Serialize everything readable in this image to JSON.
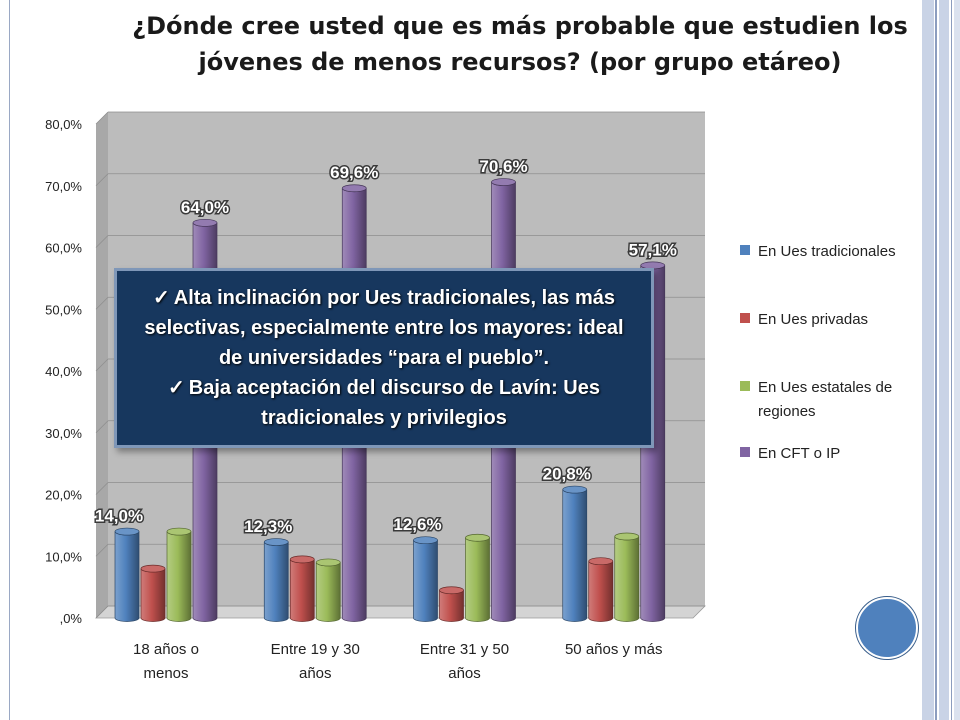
{
  "chart_data": {
    "type": "bar",
    "title": "¿Dónde cree usted que es más probable que estudien los jóvenes de menos recursos? (por grupo etáreo)",
    "categories": [
      [
        "18 años o",
        "menos"
      ],
      [
        "Entre 19 y 30",
        "años"
      ],
      [
        "Entre 31 y 50",
        "años"
      ],
      [
        "50 años y más"
      ]
    ],
    "series": [
      {
        "name": "En Ues tradicionales",
        "color": "#4f81bd",
        "values": [
          14.0,
          12.3,
          12.6,
          20.8
        ],
        "labels": [
          "14,0%",
          "12,3%",
          "12,6%",
          "20,8%"
        ]
      },
      {
        "name": "En Ues privadas",
        "color": "#c0504d",
        "values": [
          8.0,
          9.5,
          4.5,
          9.2
        ],
        "labels": []
      },
      {
        "name": "En Ues estatales de regiones",
        "color": "#9bbb59",
        "values": [
          14.0,
          9.0,
          13.0,
          13.2
        ],
        "labels": []
      },
      {
        "name": "En CFT o IP",
        "color": "#8064a2",
        "values": [
          64.0,
          69.6,
          70.6,
          57.1
        ],
        "labels": [
          "64,0%",
          "69,6%",
          "70,6%",
          "57,1%"
        ]
      }
    ],
    "legend_entries": [
      [
        "En Ues tradicionales"
      ],
      [
        "En Ues privadas"
      ],
      [
        "En Ues estatales de",
        "regiones"
      ],
      [
        "En CFT o IP"
      ]
    ],
    "yticks": [
      ",0%",
      "10,0%",
      "20,0%",
      "30,0%",
      "40,0%",
      "50,0%",
      "60,0%",
      "70,0%",
      "80,0%"
    ],
    "ylim": [
      0,
      80
    ],
    "grid": true,
    "legend_position": "right"
  },
  "callout": {
    "line1": "Alta inclinación por Ues tradicionales, las más selectivas, especialmente entre los mayores: ideal de universidades “para el pueblo”.",
    "line2": "Baja aceptación del discurso de Lavín: Ues tradicionales y privilegios",
    "check": "✓"
  }
}
